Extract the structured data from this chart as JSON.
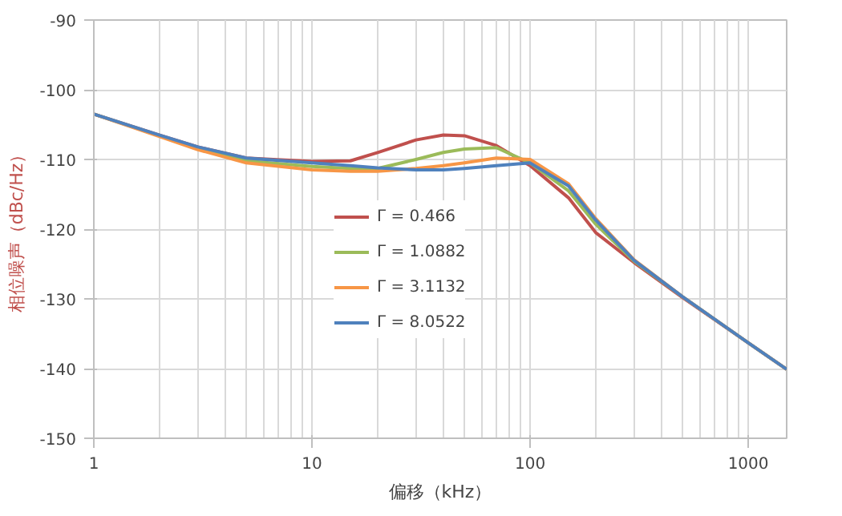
{
  "chart_data": {
    "type": "line",
    "xlabel": "偏移（kHz）",
    "ylabel": "相位噪声（dBc/Hz）",
    "log": "x",
    "xlim": [
      1,
      1500
    ],
    "xticks": [
      1,
      10,
      100,
      1000
    ],
    "ylim": [
      -150,
      -90
    ],
    "yticks": [
      -150,
      -140,
      -130,
      -120,
      -110,
      -100,
      -90
    ],
    "grid": true,
    "legend": "center",
    "line_style": "solid",
    "marker": "none",
    "x": [
      1,
      2,
      3,
      5,
      10,
      15,
      20,
      30,
      40,
      50,
      70,
      100,
      150,
      200,
      300,
      500,
      1000,
      1500
    ],
    "series": [
      {
        "name": "Γ = 0.466",
        "color": "#c0504d",
        "values": [
          -103.5,
          -106.5,
          -108.2,
          -109.8,
          -110.3,
          -110.2,
          -109,
          -107.2,
          -106.5,
          -106.6,
          -108,
          -110.9,
          -115.5,
          -120.5,
          -124.8,
          -129.8,
          -136.3,
          -140.1
        ]
      },
      {
        "name": "Γ = 1.0882",
        "color": "#9bbb59",
        "values": [
          -103.5,
          -106.6,
          -108.4,
          -110.2,
          -111,
          -111.3,
          -111.3,
          -110,
          -109,
          -108.5,
          -108.3,
          -110.5,
          -114.5,
          -119.3,
          -124.6,
          -129.7,
          -136.3,
          -140.1
        ]
      },
      {
        "name": "Γ = 3.1132",
        "color": "#f79646",
        "values": [
          -103.5,
          -106.7,
          -108.6,
          -110.5,
          -111.5,
          -111.7,
          -111.7,
          -111.3,
          -110.9,
          -110.5,
          -109.8,
          -110,
          -113.5,
          -118.5,
          -124.4,
          -129.7,
          -136.3,
          -140.1
        ]
      },
      {
        "name": "Γ = 8.0522",
        "color": "#4f81bd",
        "values": [
          -103.5,
          -106.5,
          -108.2,
          -109.8,
          -110.5,
          -110.9,
          -111.2,
          -111.5,
          -111.5,
          -111.3,
          -110.9,
          -110.5,
          -113.8,
          -118.7,
          -124.5,
          -129.7,
          -136.3,
          -140.1
        ]
      }
    ]
  }
}
